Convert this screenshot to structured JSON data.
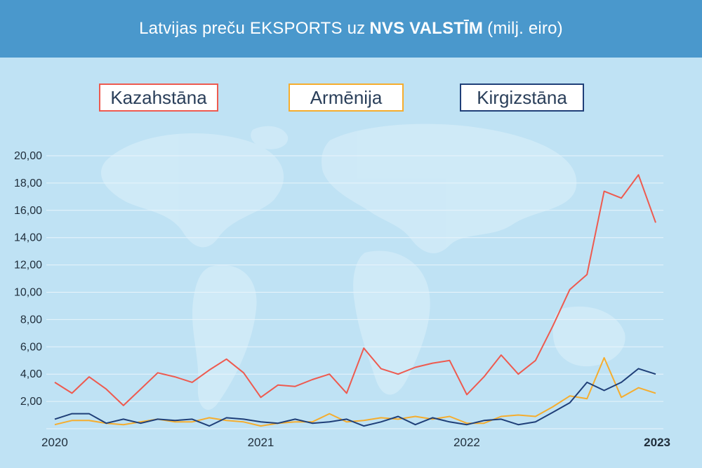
{
  "header": {
    "title_pre": "Latvijas preču EKSPORTS uz",
    "title_bold": "NVS VALSTĪM",
    "title_post": "(milj. eiro)"
  },
  "colors": {
    "header_bg": "#4a98cc",
    "chart_bg": "#bfe2f4",
    "kazahstana": "#ee5a4f",
    "armenija": "#f5ad2e",
    "kirgizstana": "#1f3f78"
  },
  "chart_data": {
    "type": "line",
    "ylim": [
      0,
      20
    ],
    "yticks": [
      "",
      "2,00",
      "4,00",
      "6,00",
      "8,00",
      "10,00",
      "12,00",
      "14,00",
      "16,00",
      "18,00",
      "20,00"
    ],
    "xlabels": [
      {
        "label": "2020",
        "index": 0,
        "bold": false
      },
      {
        "label": "2021",
        "index": 12,
        "bold": false
      },
      {
        "label": "2022",
        "index": 24,
        "bold": false
      },
      {
        "label": "2023",
        "index": 36,
        "bold": true
      }
    ],
    "grid": true,
    "legend_position": "top",
    "series": [
      {
        "name": "Kazahstāna",
        "color": "#ee5a4f",
        "values": [
          3.4,
          2.6,
          3.8,
          2.9,
          1.7,
          2.9,
          4.1,
          3.8,
          3.4,
          4.3,
          5.1,
          4.1,
          2.3,
          3.2,
          3.1,
          3.6,
          4.0,
          2.6,
          5.9,
          4.4,
          4.0,
          4.5,
          4.8,
          5.0,
          2.5,
          3.8,
          5.4,
          4.0,
          5.0,
          7.5,
          10.2,
          11.3,
          17.4,
          16.9,
          18.6,
          15.1
        ]
      },
      {
        "name": "Armēnija",
        "color": "#f5ad2e",
        "values": [
          0.3,
          0.6,
          0.6,
          0.4,
          0.3,
          0.5,
          0.7,
          0.5,
          0.5,
          0.8,
          0.6,
          0.5,
          0.2,
          0.4,
          0.5,
          0.5,
          1.1,
          0.5,
          0.6,
          0.8,
          0.7,
          0.9,
          0.7,
          0.9,
          0.4,
          0.4,
          0.9,
          1.0,
          0.9,
          1.6,
          2.4,
          2.2,
          5.2,
          2.3,
          3.0,
          2.6
        ]
      },
      {
        "name": "Kirgizstāna",
        "color": "#1f3f78",
        "values": [
          0.7,
          1.1,
          1.1,
          0.4,
          0.7,
          0.4,
          0.7,
          0.6,
          0.7,
          0.2,
          0.8,
          0.7,
          0.5,
          0.4,
          0.7,
          0.4,
          0.5,
          0.7,
          0.2,
          0.5,
          0.9,
          0.3,
          0.8,
          0.5,
          0.3,
          0.6,
          0.7,
          0.3,
          0.5,
          1.2,
          1.9,
          3.4,
          2.8,
          3.4,
          4.4,
          4.0
        ]
      }
    ]
  }
}
